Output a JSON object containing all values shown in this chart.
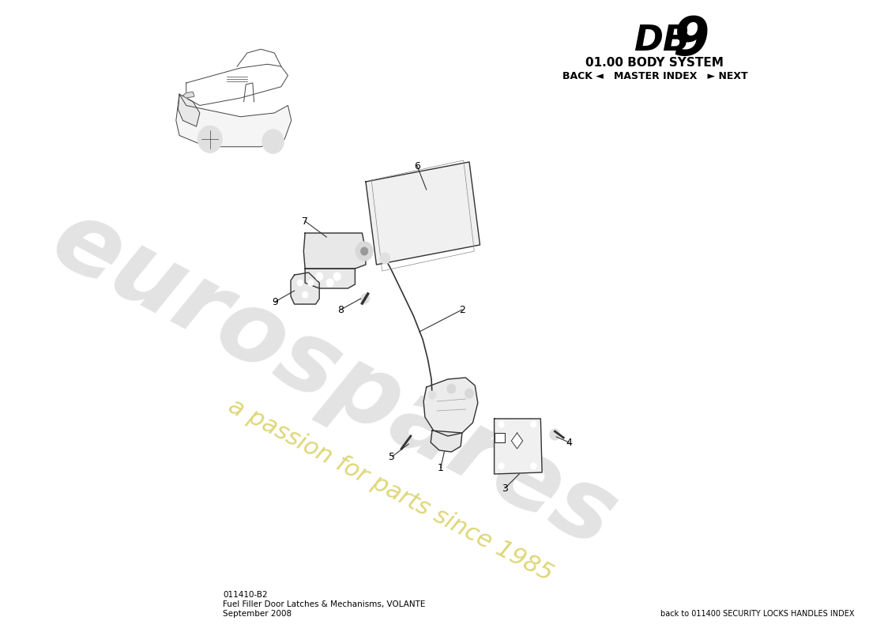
{
  "bg_color": "#ffffff",
  "title_db9_text": "DB",
  "title_9_text": "9",
  "title_system": "01.00 BODY SYSTEM",
  "nav_text": "BACK ◄   MASTER INDEX   ► NEXT",
  "part_number": "011410-B2",
  "part_name": "Fuel Filler Door Latches & Mechanisms, VOLANTE",
  "date": "September 2008",
  "back_link": "back to 011400 SECURITY LOCKS HANDLES INDEX",
  "watermark_line1": "eurospares",
  "watermark_line2": "a passion for parts since 1985",
  "component_color": "#333333",
  "watermark_color1": "#d0d0d0",
  "watermark_color2": "#d8d060"
}
